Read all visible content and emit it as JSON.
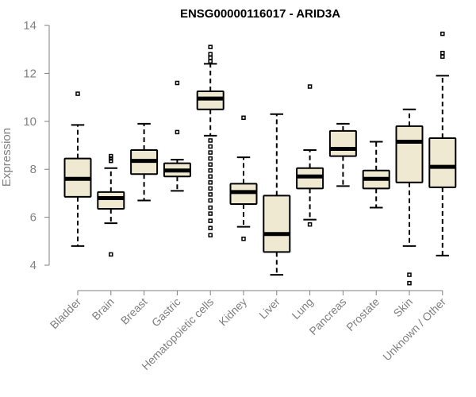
{
  "chart_data": {
    "type": "boxplot",
    "title": "ENSG00000116017 - ARID3A",
    "xlabel": "",
    "ylabel": "Expression",
    "ylim": [
      3.0,
      14.0
    ],
    "yticks": [
      4,
      6,
      8,
      10,
      12,
      14
    ],
    "categories": [
      "Bladder",
      "Brain",
      "Breast",
      "Gastric",
      "Hematopoietic cells",
      "Kidney",
      "Liver",
      "Lung",
      "Pancreas",
      "Prostate",
      "Skin",
      "Unknown / Other"
    ],
    "boxes": [
      {
        "q1": 6.85,
        "median": 7.6,
        "q3": 8.45,
        "whisker_low": 4.8,
        "whisker_high": 9.85,
        "outliers": [
          11.15
        ]
      },
      {
        "q1": 6.35,
        "median": 6.8,
        "q3": 7.05,
        "whisker_low": 5.75,
        "whisker_high": 8.05,
        "outliers": [
          4.45,
          8.35,
          8.45,
          8.55
        ]
      },
      {
        "q1": 7.8,
        "median": 8.35,
        "q3": 8.8,
        "whisker_low": 6.7,
        "whisker_high": 9.9,
        "outliers": []
      },
      {
        "q1": 7.7,
        "median": 7.95,
        "q3": 8.25,
        "whisker_low": 7.1,
        "whisker_high": 8.4,
        "outliers": [
          9.55,
          11.6
        ]
      },
      {
        "q1": 10.5,
        "median": 10.95,
        "q3": 11.25,
        "whisker_low": 9.4,
        "whisker_high": 12.4,
        "outliers": [
          5.25,
          5.55,
          5.85,
          6.15,
          6.4,
          6.7,
          6.95,
          7.2,
          7.45,
          7.7,
          7.95,
          8.2,
          8.45,
          8.7,
          8.95,
          9.2,
          12.5,
          12.65,
          12.8,
          13.1
        ]
      },
      {
        "q1": 6.55,
        "median": 7.05,
        "q3": 7.4,
        "whisker_low": 5.6,
        "whisker_high": 8.5,
        "outliers": [
          5.1,
          10.15
        ]
      },
      {
        "q1": 4.55,
        "median": 5.3,
        "q3": 6.9,
        "whisker_low": 3.6,
        "whisker_high": 10.3,
        "outliers": []
      },
      {
        "q1": 7.2,
        "median": 7.7,
        "q3": 8.05,
        "whisker_low": 5.9,
        "whisker_high": 8.8,
        "outliers": [
          5.7,
          11.45
        ]
      },
      {
        "q1": 8.55,
        "median": 8.85,
        "q3": 9.6,
        "whisker_low": 7.3,
        "whisker_high": 9.9,
        "outliers": []
      },
      {
        "q1": 7.2,
        "median": 7.6,
        "q3": 7.95,
        "whisker_low": 6.4,
        "whisker_high": 9.15,
        "outliers": []
      },
      {
        "q1": 7.45,
        "median": 9.15,
        "q3": 9.8,
        "whisker_low": 4.8,
        "whisker_high": 10.5,
        "outliers": [
          3.25,
          3.6
        ]
      },
      {
        "q1": 7.25,
        "median": 8.1,
        "q3": 9.3,
        "whisker_low": 4.4,
        "whisker_high": 11.9,
        "outliers": [
          12.7,
          12.85,
          13.65
        ]
      }
    ]
  },
  "colors": {
    "box_fill": "#efe9d2",
    "line": "#000000",
    "axis_text": "#808080"
  }
}
